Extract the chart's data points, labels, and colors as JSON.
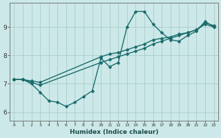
{
  "xlabel": "Humidex (Indice chaleur)",
  "bg_color": "#cce8e8",
  "grid_color": "#aacccc",
  "line_color": "#1a6b6b",
  "xlim": [
    -0.5,
    23.5
  ],
  "ylim": [
    5.7,
    9.85
  ],
  "yticks": [
    6,
    7,
    8,
    9
  ],
  "xticks": [
    0,
    1,
    2,
    3,
    4,
    5,
    6,
    7,
    8,
    9,
    10,
    11,
    12,
    13,
    14,
    15,
    16,
    17,
    18,
    19,
    20,
    21,
    22,
    23
  ],
  "line1_x": [
    0,
    1,
    2,
    3,
    4,
    5,
    6,
    7,
    8,
    9,
    10,
    11,
    12,
    13,
    14,
    15,
    16,
    17,
    18,
    19,
    20,
    21,
    22,
    23
  ],
  "line1_y": [
    7.15,
    7.15,
    7.0,
    6.7,
    6.4,
    6.35,
    6.2,
    6.35,
    6.55,
    6.75,
    7.9,
    7.6,
    7.75,
    9.0,
    9.55,
    9.55,
    9.1,
    8.8,
    8.55,
    8.5,
    8.7,
    8.85,
    9.2,
    9.0
  ],
  "line2_x": [
    0,
    1,
    2,
    3,
    10,
    11,
    12,
    13,
    14,
    15,
    16,
    17,
    18,
    19,
    20,
    21,
    22,
    23
  ],
  "line2_y": [
    7.15,
    7.15,
    7.1,
    7.05,
    7.95,
    8.05,
    8.1,
    8.2,
    8.3,
    8.4,
    8.55,
    8.6,
    8.65,
    8.75,
    8.8,
    8.9,
    9.15,
    9.05
  ],
  "line3_x": [
    0,
    1,
    2,
    3,
    10,
    11,
    12,
    13,
    14,
    15,
    16,
    17,
    18,
    19,
    20,
    21,
    22,
    23
  ],
  "line3_y": [
    7.15,
    7.15,
    7.05,
    6.95,
    7.75,
    7.85,
    7.95,
    8.05,
    8.15,
    8.25,
    8.4,
    8.5,
    8.6,
    8.7,
    8.8,
    8.9,
    9.1,
    9.0
  ],
  "marker_size": 2.5,
  "line_width": 1.0
}
